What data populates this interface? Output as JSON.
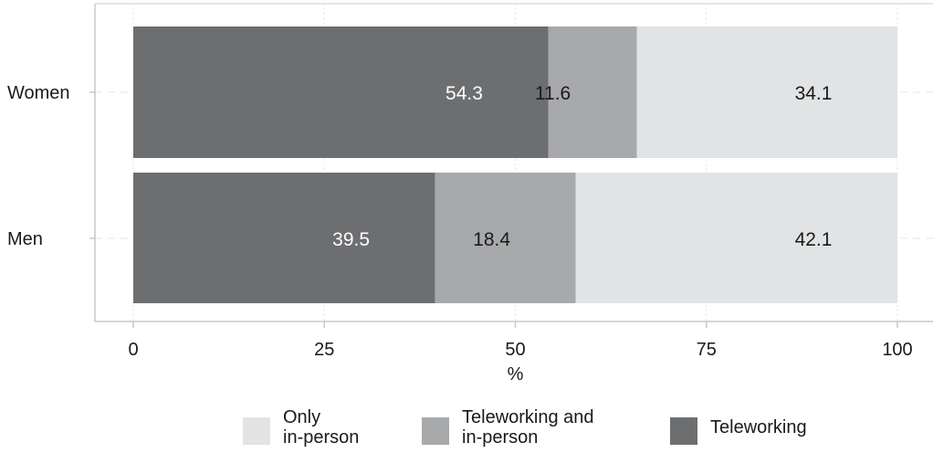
{
  "chart_data": {
    "type": "bar",
    "orientation": "horizontal",
    "stacked": true,
    "categories": [
      "Women",
      "Men"
    ],
    "series": [
      {
        "name": "Teleworking",
        "values": [
          54.3,
          39.5
        ],
        "color": "#6d6e70",
        "label_color": "#ffffff"
      },
      {
        "name": "Teleworking and\nin-person",
        "values": [
          11.6,
          18.4
        ],
        "color": "#a8a9ab",
        "label_color": "#1a1a1a"
      },
      {
        "name": "Only\nin-person",
        "values": [
          34.1,
          42.1
        ],
        "color": "#e2e3e4",
        "label_color": "#1a1a1a"
      }
    ],
    "xlabel": "%",
    "xlim": [
      0,
      100
    ],
    "xticks": [
      "0",
      "25",
      "50",
      "75",
      "100"
    ],
    "grid": true,
    "legend_position": "bottom"
  }
}
